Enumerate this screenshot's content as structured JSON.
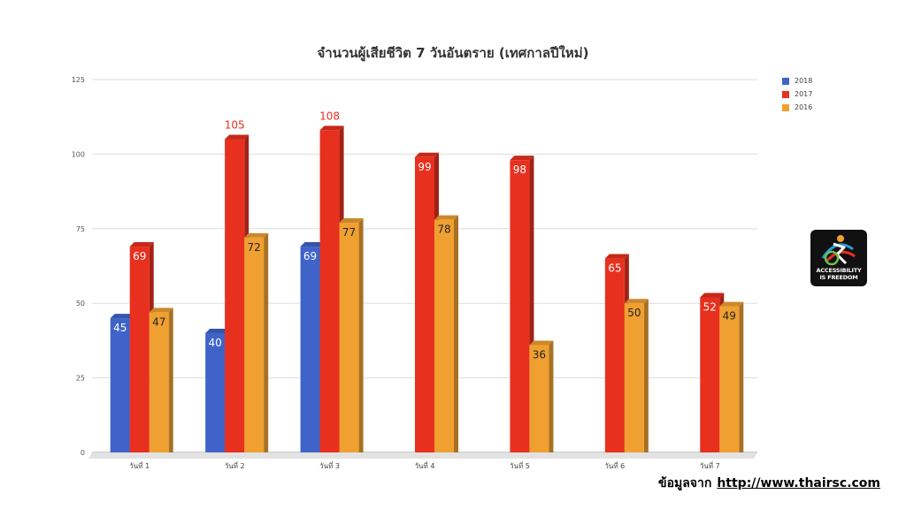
{
  "chart_data": {
    "type": "bar",
    "title": "จำนวนผู้เสียชีวิต 7 วันอันตราย (เทศกาลปีใหม่)",
    "categories": [
      "วันที่ 1",
      "วันที่ 2",
      "วันที่ 3",
      "วันที่ 4",
      "วันที่ 5",
      "วันที่ 6",
      "วันที่ 7"
    ],
    "series": [
      {
        "name": "2018",
        "color": "#3f63c8",
        "values": [
          45,
          40,
          69,
          null,
          null,
          null,
          null
        ]
      },
      {
        "name": "2017",
        "color": "#e8301f",
        "values": [
          69,
          105,
          108,
          99,
          98,
          65,
          52
        ]
      },
      {
        "name": "2016",
        "color": "#f0a030",
        "values": [
          47,
          72,
          77,
          78,
          36,
          50,
          49
        ]
      }
    ],
    "yticks": [
      0,
      25,
      50,
      75,
      100,
      125
    ],
    "ylim": [
      0,
      125
    ],
    "grid": true,
    "legend_position": "top-right",
    "xlabel": "",
    "ylabel": ""
  },
  "logo": {
    "name": "accessibility-is-freedom-logo",
    "line1": "ACCESSIBILITY",
    "line2": "IS FREEDOM"
  },
  "source": {
    "label": "ข้อมูลจาก",
    "url": "http://www.thairsc.com"
  }
}
